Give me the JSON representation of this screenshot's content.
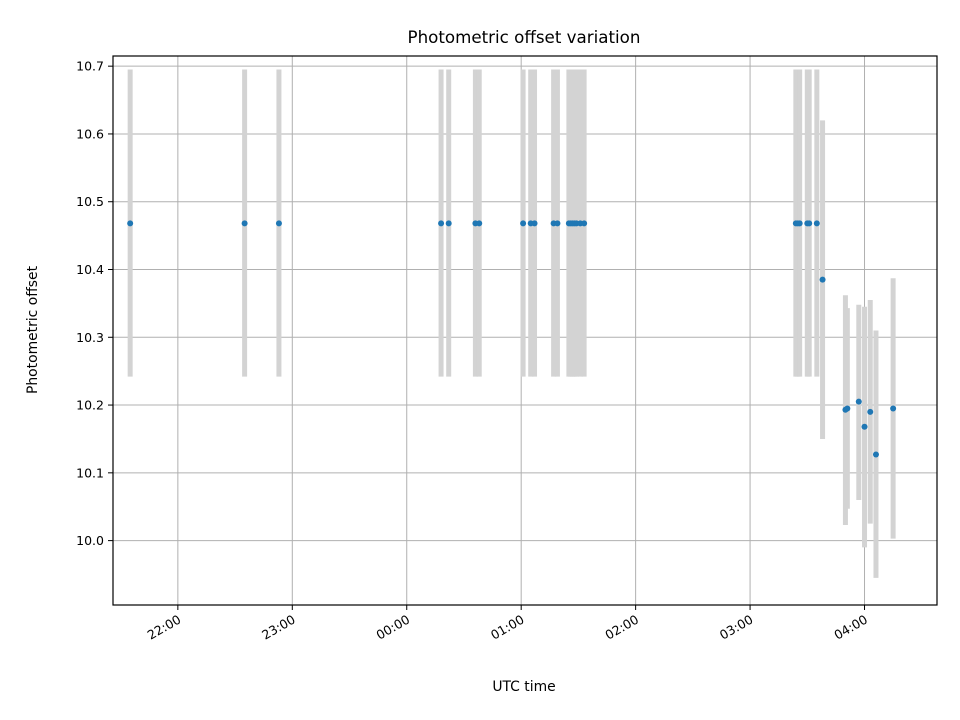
{
  "chart_data": {
    "type": "scatter",
    "title": "Photometric offset variation",
    "xlabel": "UTC time",
    "ylabel": "Photometric offset",
    "xlim": [
      "21:26",
      "04:38"
    ],
    "ylim": [
      9.905,
      10.715
    ],
    "x_ticks": [
      "22:00",
      "23:00",
      "00:00",
      "01:00",
      "02:00",
      "03:00",
      "04:00"
    ],
    "y_ticks": [
      "10.0",
      "10.1",
      "10.2",
      "10.3",
      "10.4",
      "10.5",
      "10.6",
      "10.7"
    ],
    "grid": true,
    "marker_color": "#1f77b4",
    "errorbar_color": "#d3d3d3",
    "points": [
      {
        "x": "21:35",
        "y": 10.468,
        "ylo": 10.242,
        "yhi": 10.695
      },
      {
        "x": "22:35",
        "y": 10.468,
        "ylo": 10.242,
        "yhi": 10.695
      },
      {
        "x": "22:53",
        "y": 10.468,
        "ylo": 10.242,
        "yhi": 10.695
      },
      {
        "x": "00:18",
        "y": 10.468,
        "ylo": 10.242,
        "yhi": 10.695
      },
      {
        "x": "00:22",
        "y": 10.468,
        "ylo": 10.242,
        "yhi": 10.695
      },
      {
        "x": "00:36",
        "y": 10.468,
        "ylo": 10.242,
        "yhi": 10.695
      },
      {
        "x": "00:38",
        "y": 10.468,
        "ylo": 10.242,
        "yhi": 10.695
      },
      {
        "x": "01:01",
        "y": 10.468,
        "ylo": 10.242,
        "yhi": 10.695
      },
      {
        "x": "01:05",
        "y": 10.468,
        "ylo": 10.242,
        "yhi": 10.695
      },
      {
        "x": "01:07",
        "y": 10.468,
        "ylo": 10.242,
        "yhi": 10.695
      },
      {
        "x": "01:17",
        "y": 10.468,
        "ylo": 10.242,
        "yhi": 10.695
      },
      {
        "x": "01:19",
        "y": 10.468,
        "ylo": 10.242,
        "yhi": 10.695
      },
      {
        "x": "01:25",
        "y": 10.468,
        "ylo": 10.242,
        "yhi": 10.695
      },
      {
        "x": "01:26",
        "y": 10.468,
        "ylo": 10.242,
        "yhi": 10.695
      },
      {
        "x": "01:27",
        "y": 10.468,
        "ylo": 10.242,
        "yhi": 10.695
      },
      {
        "x": "01:28",
        "y": 10.468,
        "ylo": 10.242,
        "yhi": 10.695
      },
      {
        "x": "01:29",
        "y": 10.468,
        "ylo": 10.242,
        "yhi": 10.695
      },
      {
        "x": "01:31",
        "y": 10.468,
        "ylo": 10.242,
        "yhi": 10.695
      },
      {
        "x": "01:33",
        "y": 10.468,
        "ylo": 10.242,
        "yhi": 10.695
      },
      {
        "x": "03:24",
        "y": 10.468,
        "ylo": 10.242,
        "yhi": 10.695
      },
      {
        "x": "03:25",
        "y": 10.468,
        "ylo": 10.242,
        "yhi": 10.695
      },
      {
        "x": "03:26",
        "y": 10.468,
        "ylo": 10.242,
        "yhi": 10.695
      },
      {
        "x": "03:30",
        "y": 10.468,
        "ylo": 10.242,
        "yhi": 10.695
      },
      {
        "x": "03:31",
        "y": 10.468,
        "ylo": 10.242,
        "yhi": 10.695
      },
      {
        "x": "03:35",
        "y": 10.468,
        "ylo": 10.242,
        "yhi": 10.695
      },
      {
        "x": "03:38",
        "y": 10.385,
        "ylo": 10.15,
        "yhi": 10.62
      },
      {
        "x": "03:50",
        "y": 10.193,
        "ylo": 10.023,
        "yhi": 10.362
      },
      {
        "x": "03:51",
        "y": 10.195,
        "ylo": 10.047,
        "yhi": 10.343
      },
      {
        "x": "03:57",
        "y": 10.205,
        "ylo": 10.06,
        "yhi": 10.348
      },
      {
        "x": "04:00",
        "y": 10.168,
        "ylo": 9.99,
        "yhi": 10.345
      },
      {
        "x": "04:03",
        "y": 10.19,
        "ylo": 10.025,
        "yhi": 10.355
      },
      {
        "x": "04:06",
        "y": 10.127,
        "ylo": 9.945,
        "yhi": 10.31
      },
      {
        "x": "04:15",
        "y": 10.195,
        "ylo": 10.003,
        "yhi": 10.387
      }
    ]
  }
}
